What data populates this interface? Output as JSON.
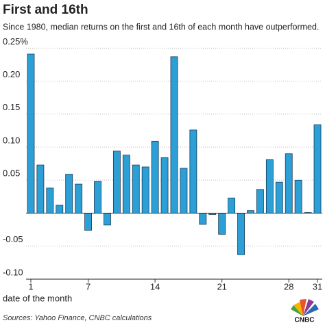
{
  "chart_data": {
    "type": "bar",
    "title": "First and 16th",
    "subtitle": "Since 1980, median returns on the first and 16th of each month have outperformed.",
    "x_label": "date of the month",
    "source": "Sources: Yahoo Finance, CNBC calculations",
    "logo": "CNBC",
    "categories": [
      "1",
      null,
      null,
      null,
      null,
      null,
      "7",
      null,
      null,
      null,
      null,
      null,
      null,
      "14",
      null,
      null,
      null,
      null,
      null,
      null,
      "21",
      null,
      null,
      null,
      null,
      null,
      null,
      "28",
      null,
      null,
      "31"
    ],
    "values": [
      0.241,
      0.073,
      0.038,
      0.012,
      0.059,
      0.044,
      -0.026,
      0.048,
      -0.018,
      0.094,
      0.088,
      0.073,
      0.07,
      0.109,
      0.084,
      0.237,
      0.068,
      0.126,
      -0.017,
      -0.002,
      -0.032,
      0.023,
      -0.063,
      0.004,
      0.036,
      0.081,
      0.047,
      0.09,
      0.05,
      0.001,
      0.134
    ],
    "color": "#2b9fd6",
    "ylim": [
      -0.1,
      0.255
    ],
    "yticks": [
      {
        "value": 0.25,
        "label": "0.25%"
      },
      {
        "value": 0.2,
        "label": "0.20"
      },
      0.15,
      {
        "value": 0.1,
        "label": "0.10"
      },
      0.05,
      -0.05,
      {
        "value": -0.1,
        "label": "-0.10"
      }
    ],
    "grid": true
  }
}
